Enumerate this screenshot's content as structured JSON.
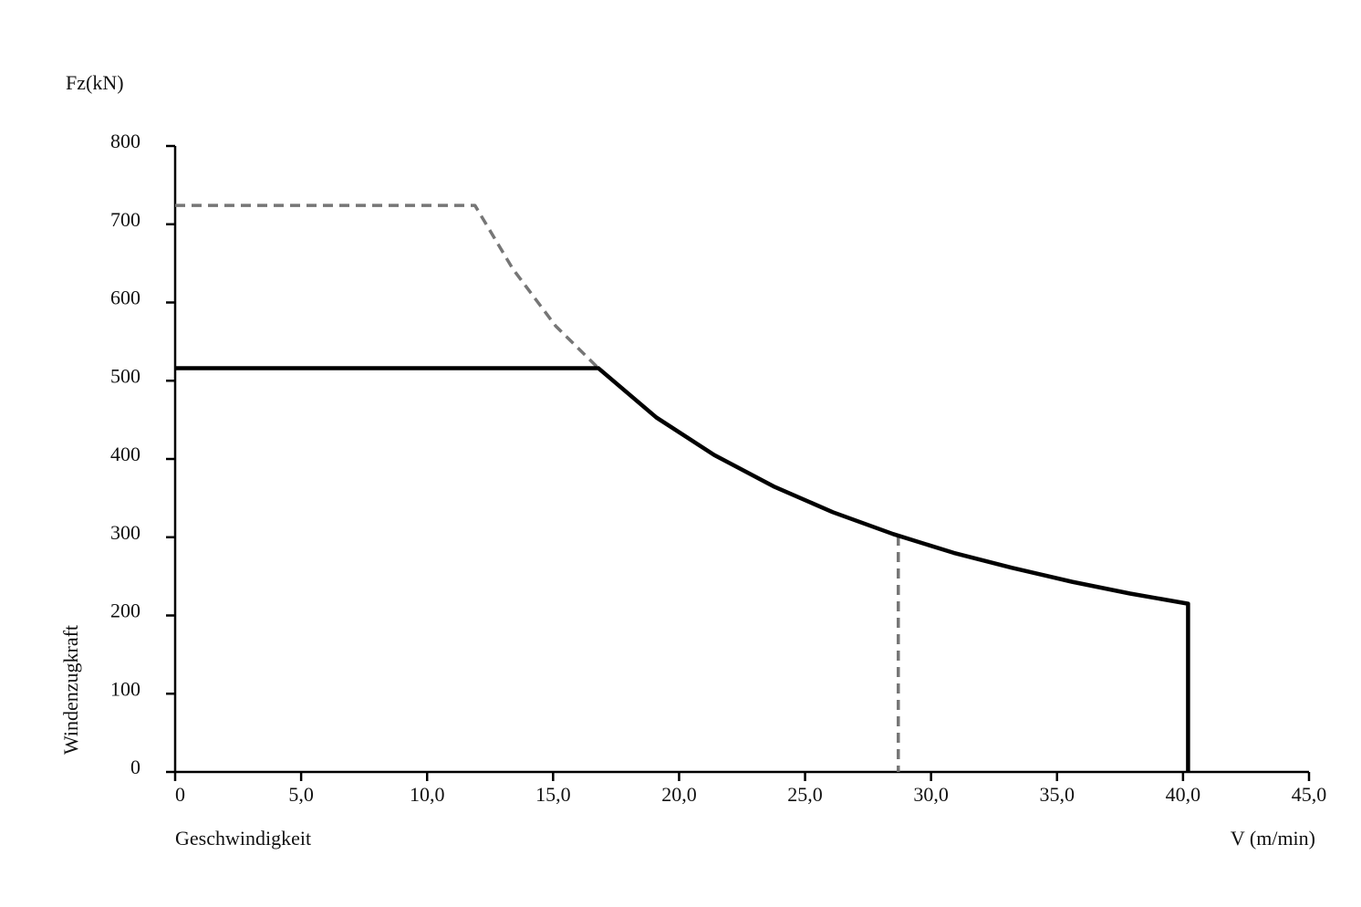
{
  "chart_data": {
    "type": "line",
    "y_unit_label": "Fz(kN)",
    "ylabel": "Windenzugkraft",
    "xlabel": "Geschwindigkeit",
    "x_unit_label": "V (m/min)",
    "xlim": [
      0,
      45
    ],
    "xticks": [
      0,
      {
        "value": 5,
        "label": "5,0"
      },
      {
        "value": 10,
        "label": "10,0"
      },
      {
        "value": 15,
        "label": "15,0"
      },
      {
        "value": 20,
        "label": "20,0"
      },
      {
        "value": 25,
        "label": "25,0"
      },
      {
        "value": 30,
        "label": "30,0"
      },
      {
        "value": 35,
        "label": "35,0"
      },
      {
        "value": 40,
        "label": "40,0"
      },
      {
        "value": 45,
        "label": "45,0"
      }
    ],
    "ylim": [
      0,
      800
    ],
    "yticks": [
      0,
      100,
      200,
      300,
      400,
      500,
      600,
      700,
      800
    ],
    "grid": false,
    "series": [
      {
        "color": "#767676",
        "dashed": true,
        "x": [
          0,
          11.9,
          13.4,
          15.1,
          16.8
        ],
        "values": [
          724,
          724,
          643,
          570,
          516
        ]
      },
      {
        "color": "#767676",
        "dashed": true,
        "x": [
          28.7,
          28.7
        ],
        "values": [
          302,
          0
        ]
      },
      {
        "color": "#000000",
        "dashed": false,
        "x": [
          0,
          16.8,
          19.1,
          21.4,
          23.75,
          26.1,
          28.5,
          30.9,
          33.2,
          35.6,
          37.9,
          40.2,
          40.2
        ],
        "values": [
          516,
          516,
          453,
          405,
          365,
          332,
          304,
          280,
          261,
          243,
          228,
          215,
          0
        ]
      }
    ]
  }
}
